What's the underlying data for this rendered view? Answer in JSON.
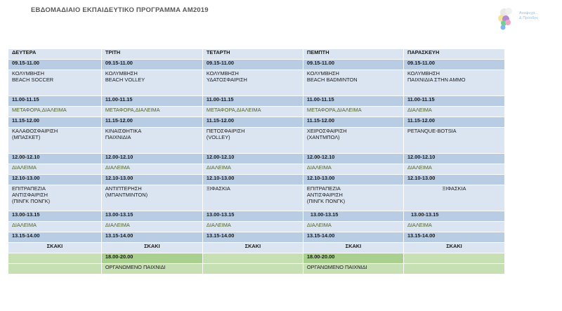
{
  "title": "ΕΒΔΟΜΑΔΙΑΙΟ ΕΚΠΑΙΔΕΥΤΙΚΟ ΠΡΟΓΡΑΜΜΑ ΑΜ2019",
  "logo": {
    "line1": "Αναψυχα...",
    "line2": "& Πρόοδος"
  },
  "days": [
    "ΔΕΥΤΕΡΑ",
    "ΤΡΙΤΗ",
    "ΤΕΤΑΡΤΗ",
    "ΠΕΜΠΤΗ",
    "ΠΑΡΑΣΚΕΥΗ"
  ],
  "rows": [
    {
      "kind": "time",
      "cells": [
        "09.15-11.00",
        "09.15-11.00",
        "09.15-11.00",
        "09.15-11.00",
        "09.15-11.00"
      ]
    },
    {
      "kind": "act",
      "cells": [
        "ΚΟΛΥΜΒΗΣΗ\nBEACH SOCCER",
        "ΚΟΛΥΜΒΗΣΗ\nBEACH VOLLEY",
        "ΚΟΛΥΜΒΗΣΗ\nΥΔΑΤΟΣΦΑΙΡΙΣΗ",
        "ΚΟΛΥΜΒΗΣΗ\nBEACH BADMINTON",
        "ΚΟΛΥΜΒΗΣΗ\nΠΑΙΧΝΙΔΙΑ ΣΤΗΝ ΑΜΜΟ"
      ]
    },
    {
      "kind": "time",
      "cells": [
        "11.00-11.15",
        "11.00-11.15",
        "11.00-11.15",
        "11.00-11.15",
        "11.00-11.15"
      ]
    },
    {
      "kind": "brk",
      "cells": [
        "ΜΕΤΑΦΟΡΑ,ΔΙΑΛΕΙΜΑ",
        "ΜΕΤΑΦΟΡΑ,ΔΙΑΛΕΙΜΑ",
        "ΜΕΤΑΦΟΡΑ,ΔΙΑΛΕΙΜΑ",
        "ΜΕΤΑΦΟΡΑ,ΔΙΑΛΕΙΜΑ",
        "ΔΙΑΛΕΙΜΑ"
      ]
    },
    {
      "kind": "time",
      "cells": [
        "11.15-12.00",
        "11.15-12.00",
        "11.15-12.00",
        "11.15-12.00",
        "11.15-12.00"
      ]
    },
    {
      "kind": "act",
      "cells": [
        "ΚΑΛΑΘΟΣΦΑΙΡΙΣΗ\n(ΜΠΑΣΚΕΤ)",
        "ΚΙΝΑΙΣΘΗΤΙΚΑ\nΠΑΙΧΝΙΔΙΑ",
        "ΠΕΤΟΣΦΑΙΡΙΣΗ\n(VOLLEY)",
        "ΧΕΙΡΟΣΦΑΙΡΙΣΗ\n(ΧΑΝΤΜΠΟΛ)",
        "PETANQUE-BOTSIA"
      ]
    },
    {
      "kind": "time",
      "cells": [
        "12.00-12.10",
        "12.00-12.10",
        "12.00-12.10",
        "12.00-12.10",
        "12.00-12.10"
      ]
    },
    {
      "kind": "brk",
      "cells": [
        "ΔΙΑΛΕΙΜΑ",
        "ΔΙΑΛΕΙΜΑ",
        "ΔΙΑΛΕΙΜΑ",
        "ΔΙΑΛΕΙΜΑ",
        "ΔΙΑΛΕΙΜΑ"
      ]
    },
    {
      "kind": "time",
      "cells": [
        "12.10-13.00",
        "12.10-13.00",
        "12.10-13.00",
        "12.10-13.00",
        "12.10-13.00"
      ]
    },
    {
      "kind": "act",
      "cells": [
        "ΕΠΙΤΡΑΠΕΖΙΑ\nΑΝΤΙΣΦΑΙΡΙΣΗ\n(ΠΙΝΓΚ ΠΟΝΓΚ)",
        "ΑΝΤΙΠΤΕΡΗΣΗ\n(ΜΠΑΝΤΜΙΝΤΟΝ)",
        "ΞΙΦΑΣΚΙΑ",
        "ΕΠΙΤΡΑΠΕΖΙΑ\nΑΝΤΙΣΦΑΙΡΙΣΗ\n(ΠΙΝΓΚ ΠΟΝΓΚ)",
        "ΞΙΦΑΣΚΙΑ"
      ]
    },
    {
      "kind": "time",
      "cells": [
        "13.00-13.15",
        "13.00-13.15",
        "13.00-13.15",
        "13.00-13.15",
        "13.00-13.15"
      ]
    },
    {
      "kind": "brk",
      "cells": [
        "ΔΙΑΛΕΙΜΑ",
        "ΔΙΑΛΕΙΜΑ",
        "ΔΙΑΛΕΙΜΑ",
        "ΔΙΑΛΕΙΜΑ",
        "ΔΙΑΛΕΙΜΑ"
      ]
    },
    {
      "kind": "time",
      "cells": [
        "13.15-14.00",
        "13.15-14.00",
        "13.15-14.00",
        "13.15-14.00",
        "13.15-14.00"
      ]
    },
    {
      "kind": "chess",
      "cells": [
        "ΣΚΑΚΙ",
        "ΣΚΑΚΙ",
        "ΣΚΑΚΙ",
        "ΣΚΑΚΙ",
        "ΣΚΑΚΙ"
      ]
    },
    {
      "kind": "green1",
      "cells": [
        "",
        "18.00-20.00",
        "",
        "18.00-20.00",
        ""
      ]
    },
    {
      "kind": "green2",
      "cells": [
        "",
        "ΟΡΓΑΝΩΜΕΝΟ ΠΑΙΧΝΙΔΙ",
        "",
        "ΟΡΓΑΝΩΜΕΝΟ ΠΑΙΧΝΙΔΙ",
        ""
      ]
    }
  ],
  "colors": {
    "time": "#b8cce4",
    "light": "#dbe5f1",
    "green_dark": "#a9d08e",
    "green_light": "#c6e0b4",
    "break_text": "#4f6228"
  }
}
